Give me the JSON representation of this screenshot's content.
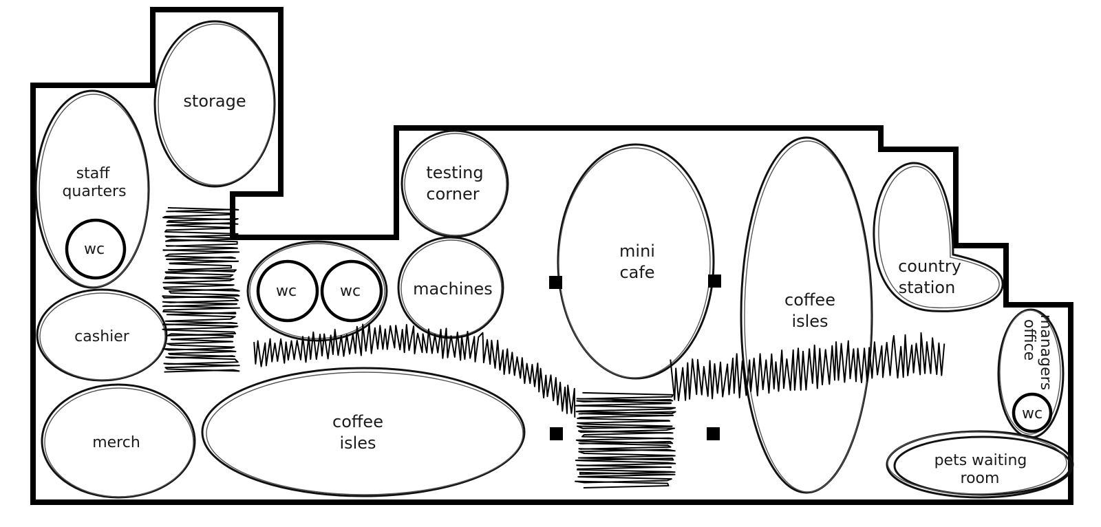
{
  "rooms": {
    "storage": "storage",
    "staff_quarters": [
      "staff",
      "quarters"
    ],
    "staff_wc": "wc",
    "cashier": "cashier",
    "merch": "merch",
    "wc_left": "wc",
    "wc_right": "wc",
    "testing_corner": [
      "testing",
      "corner"
    ],
    "machines": "machines",
    "coffee_isles_bottom": [
      "coffee",
      "isles"
    ],
    "mini_cafe": [
      "mini",
      "cafe"
    ],
    "coffee_isles_right": [
      "coffee",
      "isles"
    ],
    "country_station": [
      "country",
      "station"
    ],
    "managers_office": [
      "managers",
      "office"
    ],
    "managers_wc": "wc",
    "pets_waiting_room": [
      "pets waiting",
      "room"
    ]
  }
}
